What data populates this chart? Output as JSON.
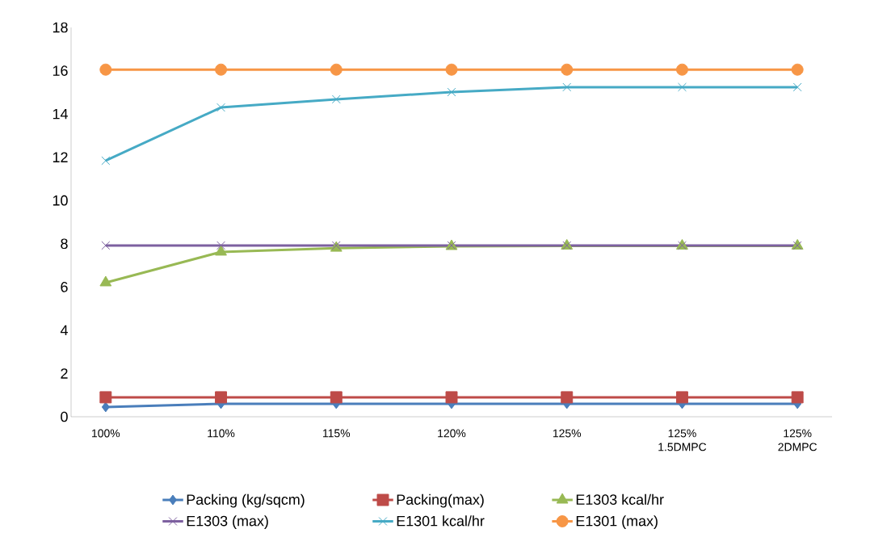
{
  "chart_data": {
    "type": "line",
    "categories": [
      "100%",
      "110%",
      "115%",
      "120%",
      "125%",
      "125% 1.5DMPC",
      "125% 2DMPC"
    ],
    "ylim": [
      0,
      18
    ],
    "yticks": [
      0,
      2,
      4,
      6,
      8,
      10,
      12,
      14,
      16,
      18
    ],
    "grid": false,
    "legend": "bottom",
    "series": [
      {
        "name": "Packing (kg/sqcm)",
        "color": "#4a7ebb",
        "marker": "diamond",
        "values": [
          0.45,
          0.6,
          0.6,
          0.6,
          0.6,
          0.6,
          0.6
        ]
      },
      {
        "name": "Packing(max)",
        "color": "#be4b48",
        "marker": "square",
        "values": [
          0.9,
          0.9,
          0.9,
          0.9,
          0.9,
          0.9,
          0.9
        ]
      },
      {
        "name": "E1303  kcal/hr",
        "color": "#98b954",
        "marker": "triangle",
        "values": [
          6.2,
          7.62,
          7.8,
          7.88,
          7.9,
          7.9,
          7.9
        ]
      },
      {
        "name": "E1303 (max)",
        "color": "#7d60a0",
        "marker": "cross",
        "values": [
          7.92,
          7.92,
          7.92,
          7.92,
          7.92,
          7.92,
          7.92
        ]
      },
      {
        "name": "E1301 kcal/hr",
        "color": "#46aac5",
        "marker": "cross",
        "values": [
          11.84,
          14.3,
          14.68,
          15.01,
          15.24,
          15.24,
          15.24
        ]
      },
      {
        "name": "E1301 (max)",
        "color": "#f79646",
        "marker": "circle",
        "values": [
          16.05,
          16.05,
          16.05,
          16.05,
          16.05,
          16.05,
          16.05
        ]
      }
    ]
  }
}
